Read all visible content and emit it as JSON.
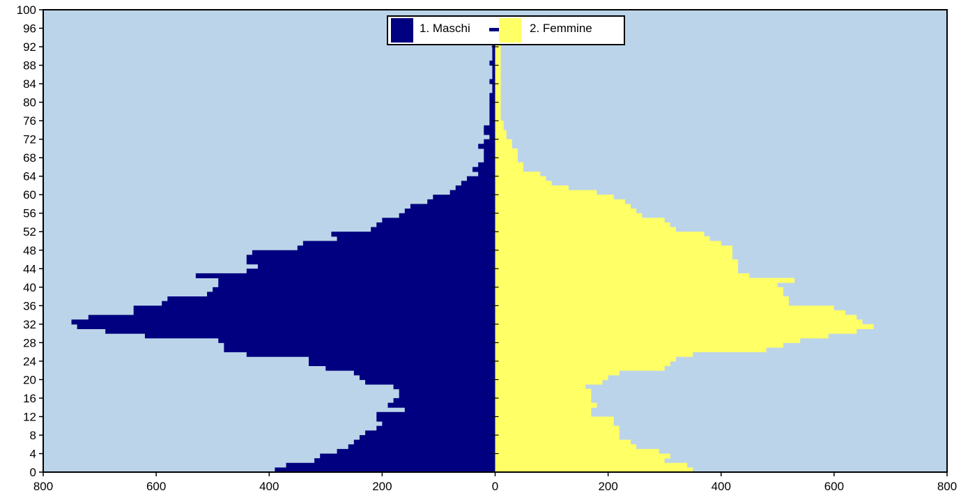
{
  "chart_data": {
    "type": "bar",
    "orientation": "horizontal-pyramid",
    "title": "",
    "xlabel": "",
    "ylabel": "",
    "x_range": [
      -800,
      800
    ],
    "y_range": [
      0,
      100
    ],
    "x_ticks": [
      {
        "value": -800,
        "label": "800"
      },
      {
        "value": -600,
        "label": "600"
      },
      {
        "value": -400,
        "label": "400"
      },
      {
        "value": -200,
        "label": "200"
      },
      {
        "value": 0,
        "label": "0"
      },
      {
        "value": 200,
        "label": "200"
      },
      {
        "value": 400,
        "label": "400"
      },
      {
        "value": 600,
        "label": "600"
      },
      {
        "value": 800,
        "label": "800"
      }
    ],
    "y_ticks": [
      0,
      4,
      8,
      12,
      16,
      20,
      24,
      28,
      32,
      36,
      40,
      44,
      48,
      52,
      56,
      60,
      64,
      68,
      72,
      76,
      80,
      84,
      88,
      92,
      96,
      100
    ],
    "legend_position": "top-center",
    "plot_background": "#bcd4ea",
    "series": [
      {
        "name": "1. Maschi",
        "color": "#000080",
        "side": "left",
        "ages": [
          0,
          1,
          2,
          3,
          4,
          5,
          6,
          7,
          8,
          9,
          10,
          11,
          12,
          13,
          14,
          15,
          16,
          17,
          18,
          19,
          20,
          21,
          22,
          23,
          24,
          25,
          26,
          27,
          28,
          29,
          30,
          31,
          32,
          33,
          34,
          35,
          36,
          37,
          38,
          39,
          40,
          41,
          42,
          43,
          44,
          45,
          46,
          47,
          48,
          49,
          50,
          51,
          52,
          53,
          54,
          55,
          56,
          57,
          58,
          59,
          60,
          61,
          62,
          63,
          64,
          65,
          66,
          67,
          68,
          69,
          70,
          71,
          72,
          73,
          74,
          75,
          76,
          77,
          78,
          79,
          80,
          81,
          82,
          83,
          84,
          85,
          86,
          87,
          88,
          89,
          90,
          91,
          92,
          93,
          94,
          95
        ],
        "values": [
          390,
          370,
          320,
          310,
          280,
          260,
          250,
          240,
          230,
          210,
          200,
          210,
          210,
          160,
          190,
          180,
          170,
          170,
          180,
          230,
          240,
          250,
          300,
          330,
          330,
          440,
          480,
          480,
          490,
          620,
          690,
          740,
          750,
          720,
          640,
          640,
          590,
          580,
          510,
          500,
          490,
          490,
          530,
          440,
          420,
          440,
          440,
          430,
          350,
          340,
          280,
          290,
          220,
          210,
          200,
          170,
          160,
          150,
          120,
          110,
          80,
          70,
          60,
          50,
          30,
          40,
          30,
          20,
          20,
          20,
          30,
          20,
          10,
          20,
          20,
          10,
          10,
          10,
          10,
          10,
          10,
          10,
          5,
          5,
          10,
          5,
          5,
          5,
          10,
          5,
          5,
          5,
          5,
          5,
          5,
          5
        ]
      },
      {
        "name": "2. Femmine",
        "color": "#ffff66",
        "side": "right",
        "ages": [
          0,
          1,
          2,
          3,
          4,
          5,
          6,
          7,
          8,
          9,
          10,
          11,
          12,
          13,
          14,
          15,
          16,
          17,
          18,
          19,
          20,
          21,
          22,
          23,
          24,
          25,
          26,
          27,
          28,
          29,
          30,
          31,
          32,
          33,
          34,
          35,
          36,
          37,
          38,
          39,
          40,
          41,
          42,
          43,
          44,
          45,
          46,
          47,
          48,
          49,
          50,
          51,
          52,
          53,
          54,
          55,
          56,
          57,
          58,
          59,
          60,
          61,
          62,
          63,
          64,
          65,
          66,
          67,
          68,
          69,
          70,
          71,
          72,
          73,
          74,
          75,
          76,
          77,
          78,
          79,
          80,
          81,
          82,
          83,
          84,
          85,
          86,
          87,
          88,
          89,
          90,
          91,
          92,
          93,
          94,
          95
        ],
        "values": [
          350,
          340,
          300,
          310,
          290,
          250,
          240,
          220,
          220,
          220,
          210,
          210,
          170,
          170,
          180,
          170,
          170,
          170,
          160,
          190,
          200,
          220,
          300,
          310,
          320,
          350,
          480,
          510,
          540,
          590,
          640,
          670,
          650,
          640,
          620,
          600,
          520,
          520,
          510,
          510,
          500,
          530,
          450,
          430,
          430,
          430,
          420,
          420,
          420,
          400,
          380,
          370,
          320,
          310,
          300,
          260,
          250,
          240,
          230,
          210,
          180,
          130,
          100,
          90,
          80,
          50,
          50,
          40,
          40,
          40,
          30,
          30,
          20,
          20,
          15,
          15,
          10,
          10,
          10,
          10,
          10,
          10,
          10,
          10,
          10,
          10,
          10,
          10,
          10,
          10,
          10,
          10,
          10,
          10,
          10,
          10
        ]
      }
    ]
  }
}
